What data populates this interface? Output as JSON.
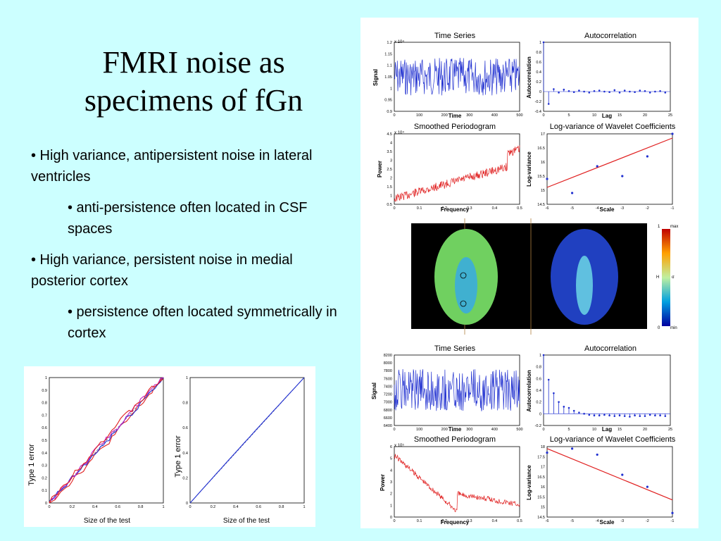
{
  "slide": {
    "title_line1": "FMRI noise as",
    "title_line2": "specimens of fGn",
    "bullets": [
      "• High variance, antipersistent noise in lateral ventricles",
      "• anti-persistence often located in CSF spaces",
      "• High variance, persistent noise in medial posterior cortex",
      "•  persistence often located symmetrically in cortex"
    ]
  },
  "typeone": {
    "xlabel": "Size of the test",
    "ylabel": "Type 1 error",
    "left_yticks": [
      "1",
      "0.9",
      "0.8",
      "0.7",
      "0.6",
      "0.5",
      "0.4",
      "0.3",
      "0.2",
      "0.1",
      "0"
    ],
    "right_yticks": [
      "1",
      "0.8",
      "0.6",
      "0.4",
      "0.2",
      "0"
    ],
    "xticks": [
      "0",
      "0.2",
      "0.4",
      "0.6",
      "0.8",
      "1"
    ],
    "colors": {
      "red": "#e02020",
      "blue": "#2030d0",
      "magenta": "#c020c0",
      "dashed": "#6060a0"
    }
  },
  "top_set": {
    "ts_title": "Time Series",
    "ts_xlabel": "Time",
    "ts_ylabel": "Signal",
    "ts_exp": "x 10⁴",
    "ts_yticks": [
      "1.2",
      "1.15",
      "1.1",
      "1.05",
      "1",
      "0.95",
      "0.9"
    ],
    "ts_xticks": [
      "0",
      "100",
      "200",
      "300",
      "400",
      "500"
    ],
    "ac_title": "Autocorrelation",
    "ac_xlabel": "Lag",
    "ac_ylabel": "Autocorrelation",
    "ac_yticks": [
      "1",
      "0.8",
      "0.6",
      "0.4",
      "0.2",
      "0",
      "-0.2",
      "-0.4"
    ],
    "ac_xticks": [
      "0",
      "5",
      "10",
      "15",
      "20",
      "25"
    ],
    "sp_title": "Smoothed  Periodogram",
    "sp_xlabel": "Frequency",
    "sp_ylabel": "Power",
    "sp_exp": "x 10⁴",
    "sp_yticks": [
      "4.5",
      "4",
      "3.5",
      "3",
      "2.5",
      "2",
      "1.5",
      "1",
      "0.5"
    ],
    "sp_xticks": [
      "0",
      "0.1",
      "0.2",
      "0.3",
      "0.4",
      "0.5"
    ],
    "wv_title": "Log-variance of Wavelet Coefficients",
    "wv_xlabel": "Scale",
    "wv_ylabel": "Log-variance",
    "wv_yticks": [
      "17",
      "16.5",
      "16",
      "15.5",
      "15",
      "14.5"
    ],
    "wv_xticks": [
      "-6",
      "-5",
      "-4",
      "-3",
      "-2",
      "-1"
    ]
  },
  "brain": {
    "cb_labels": {
      "top_left": "1",
      "top_right": "max",
      "mid_left": "H",
      "mid_right": "σ",
      "bot_left": "0",
      "bot_right": "min"
    }
  },
  "bottom_set": {
    "ts_title": "Time Series",
    "ts_xlabel": "Time",
    "ts_ylabel": "Signal",
    "ts_yticks": [
      "8200",
      "8000",
      "7800",
      "7600",
      "7400",
      "7200",
      "7000",
      "6800",
      "6600",
      "6400"
    ],
    "ts_xticks": [
      "0",
      "100",
      "200",
      "300",
      "400",
      "500"
    ],
    "ac_title": "Autocorrelation",
    "ac_xlabel": "Lag",
    "ac_ylabel": "Autocorrelation",
    "ac_yticks": [
      "1",
      "0.8",
      "0.6",
      "0.4",
      "0.2",
      "0",
      "-0.2"
    ],
    "ac_xticks": [
      "0",
      "5",
      "10",
      "15",
      "20",
      "25"
    ],
    "sp_title": "Smoothed  Periodogram",
    "sp_xlabel": "Frequency",
    "sp_ylabel": "Power",
    "sp_exp": "x 10⁵",
    "sp_yticks": [
      "6",
      "5",
      "4",
      "3",
      "2",
      "1",
      "0"
    ],
    "sp_xticks": [
      "0",
      "0.1",
      "0.2",
      "0.3",
      "0.4",
      "0.5"
    ],
    "wv_title": "Log-variance of Wavelet Coefficients",
    "wv_xlabel": "Scale",
    "wv_ylabel": "Log-variance",
    "wv_yticks": [
      "18",
      "17.5",
      "17",
      "16.5",
      "16",
      "15.5",
      "15",
      "14.5"
    ],
    "wv_xticks": [
      "-6",
      "-5",
      "-4",
      "-3",
      "-2",
      "-1"
    ]
  },
  "chart_data": [
    {
      "type": "line",
      "title": "Time Series",
      "xlabel": "Time",
      "ylabel": "Signal",
      "xlim": [
        0,
        512
      ],
      "ylim": [
        9000,
        12000
      ],
      "note": "x 10^4 scale; noisy series around 1.0e4"
    },
    {
      "type": "bar",
      "title": "Autocorrelation",
      "xlabel": "Lag",
      "ylabel": "Autocorrelation",
      "xlim": [
        0,
        25
      ],
      "ylim": [
        -0.4,
        1
      ],
      "x": [
        0,
        1,
        2,
        3,
        4,
        5,
        6,
        7,
        8,
        9,
        10,
        11,
        12,
        13,
        14,
        15,
        16,
        17,
        18,
        19,
        20,
        21,
        22,
        23,
        24
      ],
      "values": [
        1,
        -0.25,
        0.05,
        -0.02,
        0.04,
        0.01,
        -0.01,
        0.02,
        0.0,
        -0.02,
        0.01,
        0.02,
        0.0,
        -0.01,
        0.03,
        -0.02,
        0.02,
        0.0,
        -0.01,
        0.02,
        0.01,
        -0.02,
        0.0,
        0.01,
        -0.02
      ]
    },
    {
      "type": "line",
      "title": "Smoothed  Periodogram",
      "xlabel": "Frequency",
      "ylabel": "Power",
      "xlim": [
        0,
        0.5
      ],
      "ylim": [
        0.5,
        4.5
      ]
    },
    {
      "type": "scatter",
      "title": "Log-variance of Wavelet Coefficients",
      "xlabel": "Scale",
      "ylabel": "Log-variance",
      "xlim": [
        -6,
        -1
      ],
      "ylim": [
        14.5,
        17
      ],
      "x": [
        -6,
        -5,
        -4,
        -3,
        -2,
        -1
      ],
      "y": [
        15.4,
        14.9,
        15.85,
        15.5,
        16.2,
        17.0
      ],
      "fit": [
        [
          -6,
          15.1
        ],
        [
          -1,
          16.85
        ]
      ]
    },
    {
      "type": "line",
      "title": "Time Series",
      "xlabel": "Time",
      "ylabel": "Signal",
      "xlim": [
        0,
        512
      ],
      "ylim": [
        6400,
        8200
      ]
    },
    {
      "type": "bar",
      "title": "Autocorrelation",
      "xlabel": "Lag",
      "ylabel": "Autocorrelation",
      "xlim": [
        0,
        25
      ],
      "ylim": [
        -0.2,
        1
      ],
      "x": [
        0,
        1,
        2,
        3,
        4,
        5,
        6,
        7,
        8,
        9,
        10,
        11,
        12,
        13,
        14,
        15,
        16,
        17,
        18,
        19,
        20,
        21,
        22,
        23,
        24
      ],
      "values": [
        1,
        0.58,
        0.35,
        0.2,
        0.12,
        0.1,
        0.05,
        0.02,
        0.0,
        -0.02,
        -0.03,
        -0.03,
        -0.02,
        -0.03,
        -0.04,
        -0.03,
        -0.04,
        -0.05,
        -0.03,
        -0.04,
        -0.04,
        -0.02,
        -0.03,
        -0.03,
        -0.04
      ]
    },
    {
      "type": "line",
      "title": "Smoothed  Periodogram",
      "xlabel": "Frequency",
      "ylabel": "Power",
      "xlim": [
        0,
        0.5
      ],
      "ylim": [
        0,
        6
      ]
    },
    {
      "type": "scatter",
      "title": "Log-variance of Wavelet Coefficients",
      "xlabel": "Scale",
      "ylabel": "Log-variance",
      "xlim": [
        -6,
        -1
      ],
      "ylim": [
        14.5,
        18
      ],
      "x": [
        -6,
        -5,
        -4,
        -3,
        -2,
        -1
      ],
      "y": [
        17.7,
        17.9,
        17.6,
        16.6,
        16.0,
        14.7
      ],
      "fit": [
        [
          -6,
          17.9
        ],
        [
          -1,
          15.35
        ]
      ]
    },
    {
      "type": "line",
      "title": "",
      "xlabel": "Size of the test",
      "ylabel": "Type 1 error",
      "xlim": [
        0,
        1
      ],
      "ylim": [
        0,
        1
      ]
    },
    {
      "type": "line",
      "title": "",
      "xlabel": "Size of the test",
      "ylabel": "Type 1 error",
      "xlim": [
        0,
        1
      ],
      "ylim": [
        0,
        1
      ]
    }
  ]
}
